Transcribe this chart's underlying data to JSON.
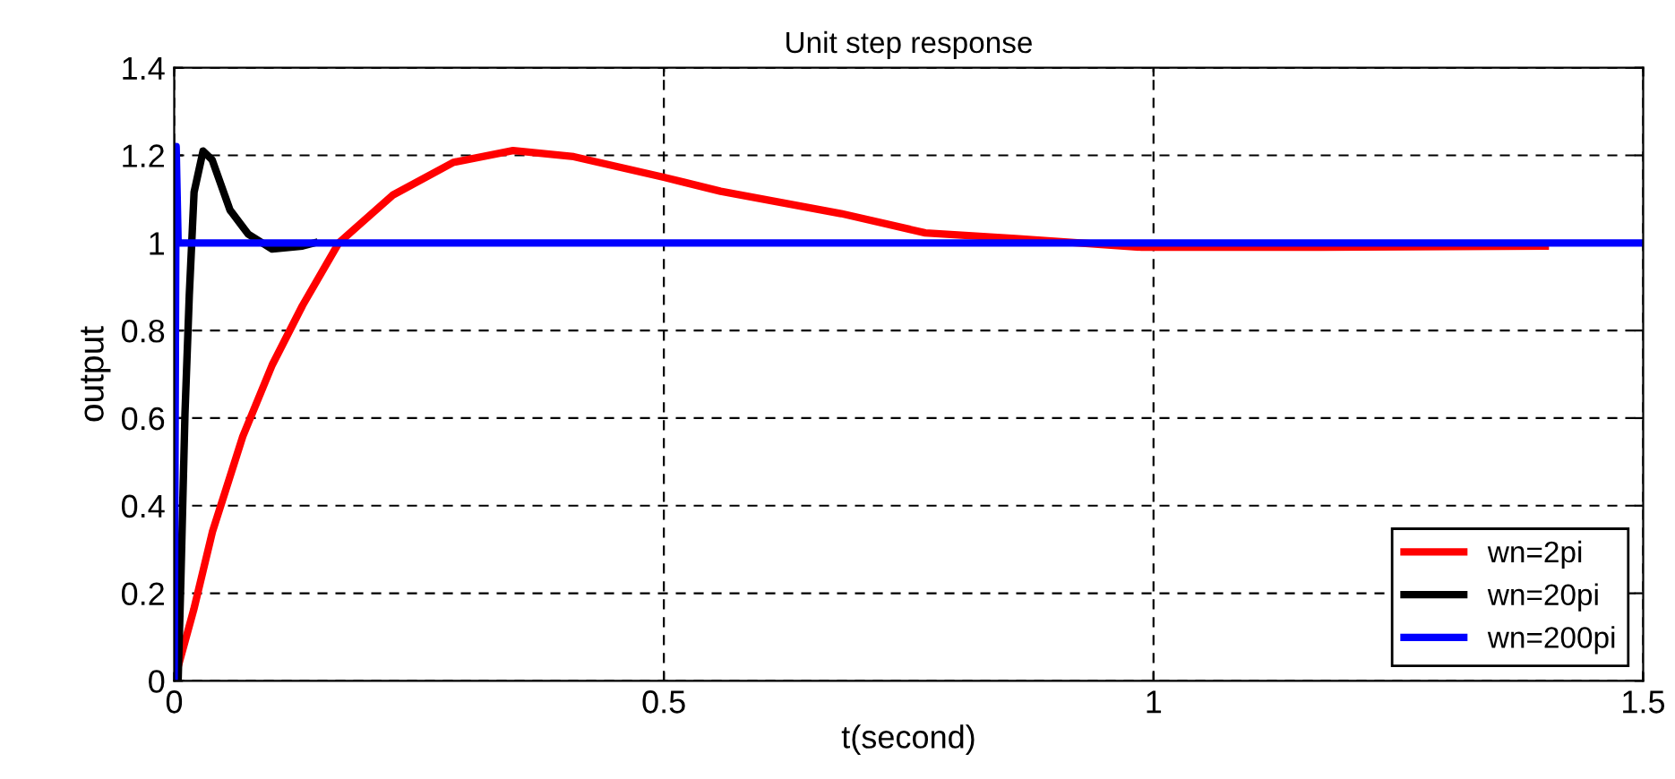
{
  "chart_data": {
    "type": "line",
    "title": "Unit step response",
    "xlabel": "t(second)",
    "ylabel": "output",
    "xlim": [
      0,
      1.5
    ],
    "ylim": [
      0,
      1.4
    ],
    "xticks": [
      0,
      0.5,
      1,
      1.5
    ],
    "yticks": [
      0,
      0.2,
      0.4,
      0.6,
      0.8,
      1,
      1.2,
      1.4
    ],
    "grid": true,
    "legend": "bottom right",
    "line_style": "solid",
    "marker": "none",
    "series": [
      {
        "name": "wn=2pi",
        "color": "#ff0000",
        "x": [
          0,
          0.02,
          0.039,
          0.07,
          0.1,
          0.131,
          0.168,
          0.223,
          0.285,
          0.346,
          0.408,
          0.5,
          0.558,
          0.681,
          0.767,
          0.859,
          0.988,
          1.17,
          1.4
        ],
        "values": [
          0,
          0.163,
          0.34,
          0.558,
          0.721,
          0.857,
          1.0,
          1.109,
          1.184,
          1.211,
          1.197,
          1.15,
          1.118,
          1.067,
          1.023,
          1.01,
          0.99,
          0.99,
          0.993
        ]
      },
      {
        "name": "wn=20pi",
        "color": "#000000",
        "x": [
          0,
          0.004,
          0.0068,
          0.011,
          0.0154,
          0.0203,
          0.0295,
          0.0387,
          0.057,
          0.0756,
          0.1,
          0.131,
          0.143
        ],
        "values": [
          0,
          0,
          0.23,
          0.61,
          0.88,
          1.116,
          1.21,
          1.19,
          1.075,
          1.02,
          0.986,
          0.993,
          1.0
        ]
      },
      {
        "name": "wn=200pi",
        "color": "#0000ff",
        "x": [
          0,
          0.002,
          0.004,
          0.01,
          1.5
        ],
        "values": [
          0,
          1.22,
          1.0,
          1.0,
          1.0
        ]
      }
    ]
  }
}
